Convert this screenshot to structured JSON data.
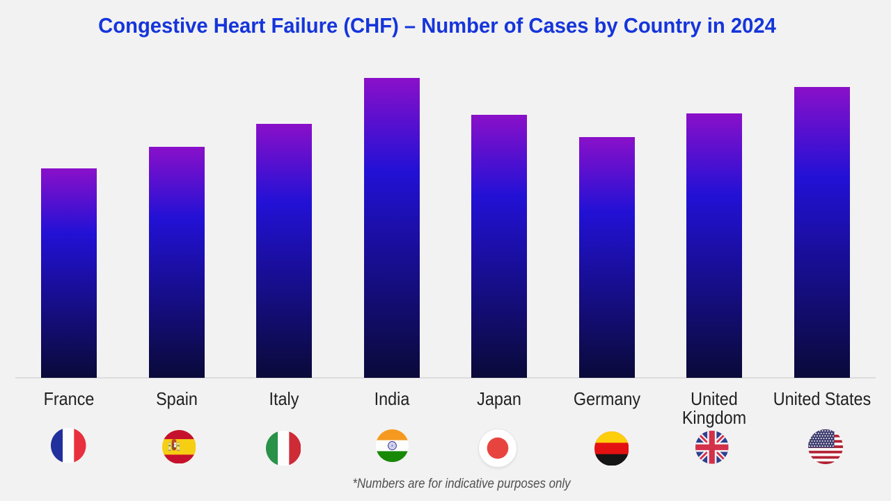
{
  "page": {
    "background_color": "#f2f2f2"
  },
  "title": {
    "text": "Congestive Heart Failure (CHF) – Number of Cases by Country in 2024",
    "color": "#1535db"
  },
  "footnote": {
    "text": "*Numbers are for indicative purposes only"
  },
  "chart_data": {
    "type": "bar",
    "title": "Congestive Heart Failure (CHF) – Number of Cases by Country in 2024",
    "categories": [
      "France",
      "Spain",
      "Italy",
      "India",
      "Japan",
      "Germany",
      "United Kingdom",
      "United States"
    ],
    "values": [
      69.8,
      77.0,
      84.8,
      100,
      87.6,
      80.2,
      88.1,
      97.0
    ],
    "value_unit": "relative index (no y-axis shown; numbers indicative only)",
    "series_name": "Number of Cases",
    "xlabel": "",
    "ylabel": "",
    "ylim": [
      0,
      100
    ],
    "grid": false,
    "legend": false,
    "y_axis_visible": false,
    "x_axis_line_color": "#dcdcdc",
    "bar_gradient": {
      "top": "#8a10c9",
      "middle": "#2211d5",
      "bottom": "#0a0a39",
      "middle_stop": 0.31
    },
    "category_label_color": "#212121",
    "flag_icons": [
      "france-flag-icon",
      "spain-flag-icon",
      "italy-flag-icon",
      "india-flag-icon",
      "japan-flag-icon",
      "germany-flag-icon",
      "united-kingdom-flag-icon",
      "united-states-flag-icon"
    ]
  }
}
